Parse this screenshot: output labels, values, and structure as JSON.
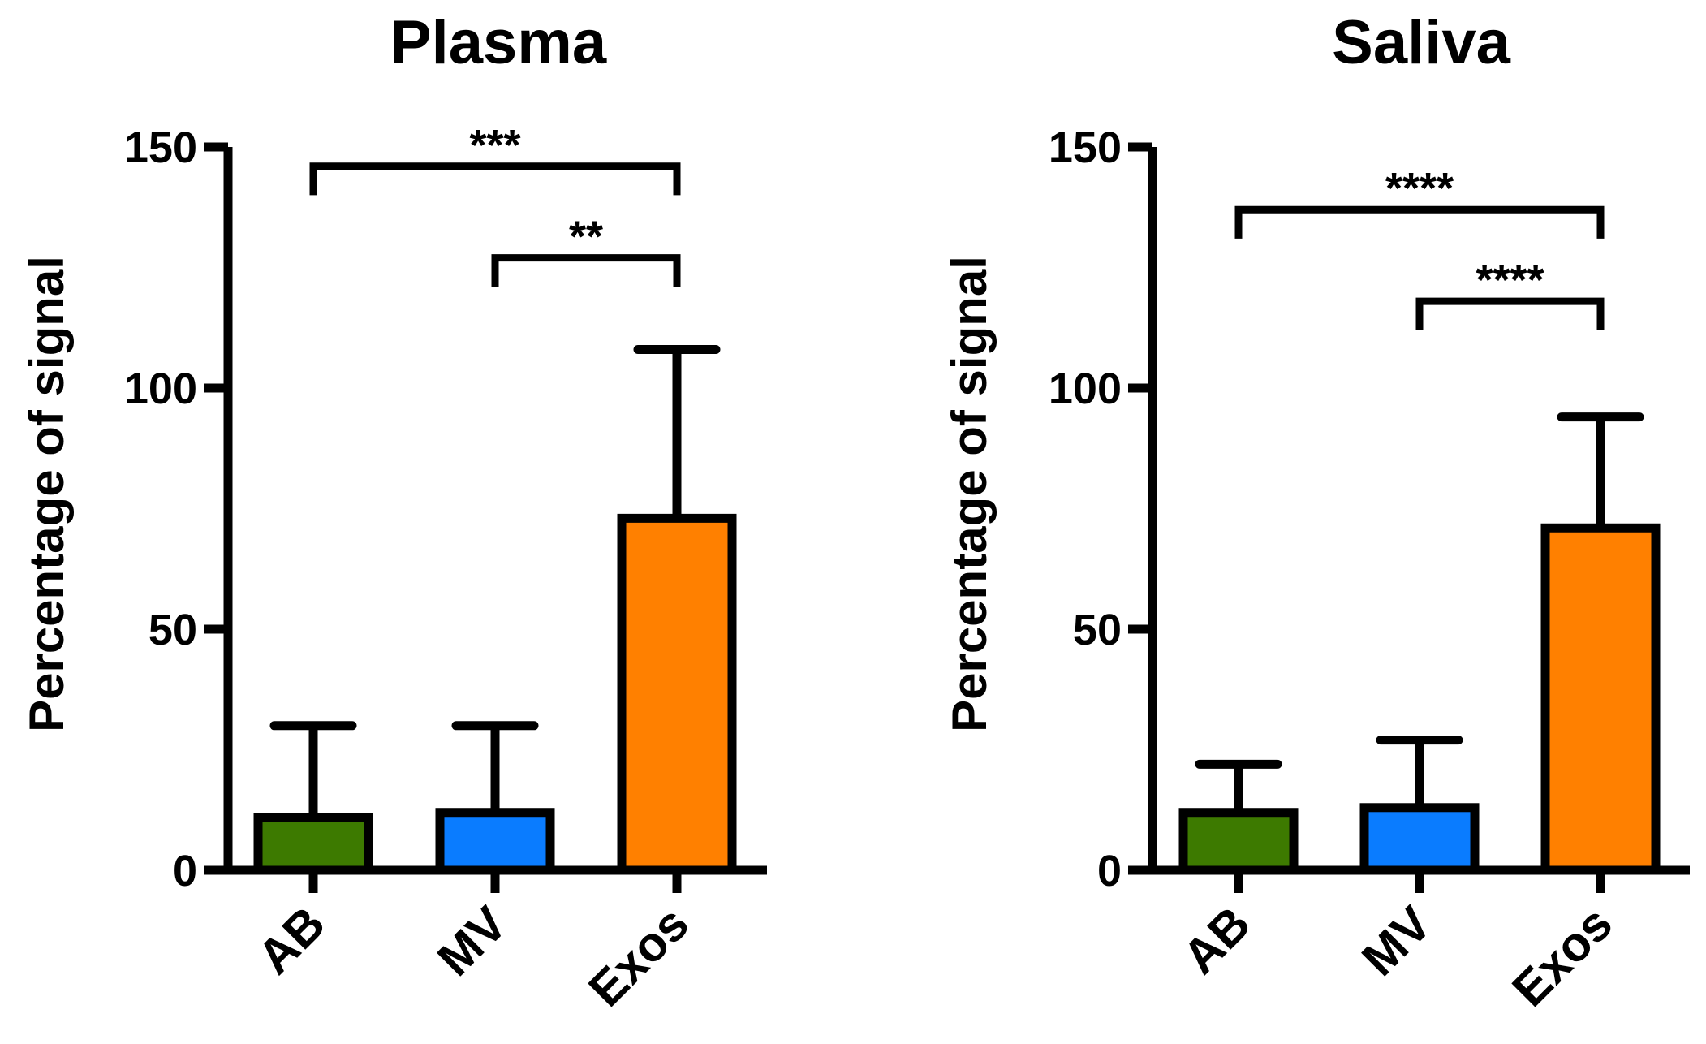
{
  "chart_data": [
    {
      "type": "bar",
      "title": "Plasma",
      "ylabel": "Percentage of signal",
      "xlabel": "",
      "categories": [
        "AB",
        "MV",
        "Exos"
      ],
      "values": [
        11,
        12,
        73
      ],
      "error_upper": [
        30,
        30,
        108
      ],
      "colors": [
        "#3d7a00",
        "#0a7cff",
        "#ff8000"
      ],
      "ylim": [
        0,
        150
      ],
      "yticks": [
        0,
        50,
        100,
        150
      ],
      "grid": false,
      "significance": [
        {
          "from": "AB",
          "to": "Exos",
          "label": "***",
          "y": 146,
          "drop_left": 140,
          "drop_right": 140
        },
        {
          "from": "MV",
          "to": "Exos",
          "label": "**",
          "y": 127,
          "drop_left": 121,
          "drop_right": 121
        }
      ]
    },
    {
      "type": "bar",
      "title": "Saliva",
      "ylabel": "Percentage of signal",
      "xlabel": "",
      "categories": [
        "AB",
        "MV",
        "Exos"
      ],
      "values": [
        12,
        13,
        71
      ],
      "error_upper": [
        22,
        27,
        94
      ],
      "colors": [
        "#3d7a00",
        "#0a7cff",
        "#ff8000"
      ],
      "ylim": [
        0,
        150
      ],
      "yticks": [
        0,
        50,
        100,
        150
      ],
      "grid": false,
      "significance": [
        {
          "from": "AB",
          "to": "Exos",
          "label": "****",
          "y": 137,
          "drop_left": 131,
          "drop_right": 131
        },
        {
          "from": "MV",
          "to": "Exos",
          "label": "****",
          "y": 118,
          "drop_left": 112,
          "drop_right": 112
        }
      ]
    }
  ]
}
